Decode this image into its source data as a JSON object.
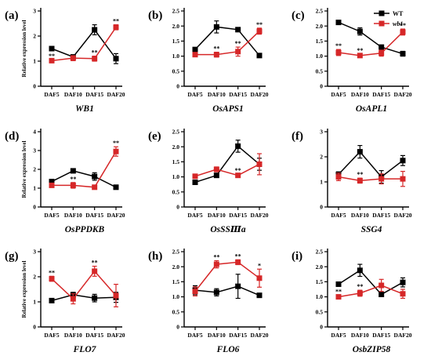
{
  "figure": {
    "legend": [
      {
        "label": "WT",
        "color": "#000000",
        "italic": false
      },
      {
        "label": "wb1",
        "color": "#d62728",
        "italic": true
      }
    ],
    "ylabel": "Relative expression level"
  },
  "chart_data": [
    {
      "type": "line",
      "panel": "(a)",
      "title": "WB1",
      "categories": [
        "DAF5",
        "DAF10",
        "DAF15",
        "DAF20"
      ],
      "ylim": [
        0,
        3
      ],
      "yticks": [
        0,
        1,
        2,
        3
      ],
      "ylabel": "Relative expression level",
      "series": [
        {
          "name": "WT",
          "color": "#000000",
          "values": [
            1.5,
            1.17,
            2.25,
            1.1
          ],
          "errors": [
            0.05,
            0.05,
            0.2,
            0.2
          ]
        },
        {
          "name": "wb1",
          "color": "#d62728",
          "values": [
            1.02,
            1.12,
            1.1,
            2.35
          ],
          "errors": [
            0.05,
            0.1,
            0.1,
            0.1
          ],
          "sig": [
            "**",
            "",
            "**",
            "**"
          ]
        }
      ]
    },
    {
      "type": "line",
      "panel": "(b)",
      "title": "OsAPS1",
      "categories": [
        "DAF5",
        "DAF10",
        "DAF15",
        "DAF20"
      ],
      "ylim": [
        0,
        2.5
      ],
      "yticks": [
        0,
        0.5,
        1.0,
        1.5,
        2.0,
        2.5
      ],
      "ylabel": "",
      "series": [
        {
          "name": "WT",
          "color": "#000000",
          "values": [
            1.22,
            1.97,
            1.88,
            1.02
          ],
          "errors": [
            0.03,
            0.2,
            0.05,
            0.03
          ]
        },
        {
          "name": "wb1",
          "color": "#d62728",
          "values": [
            1.05,
            1.05,
            1.15,
            1.83
          ],
          "errors": [
            0.03,
            0.08,
            0.15,
            0.1
          ],
          "sig": [
            "",
            "**",
            "**",
            "**"
          ]
        }
      ]
    },
    {
      "type": "line",
      "panel": "(c)",
      "title": "OsAPL1",
      "categories": [
        "DAF5",
        "DAF10",
        "DAF15",
        "DAF20"
      ],
      "ylim": [
        0,
        2.5
      ],
      "yticks": [
        0,
        0.5,
        1.0,
        1.5,
        2.0,
        2.5
      ],
      "ylabel": "",
      "series": [
        {
          "name": "WT",
          "color": "#000000",
          "values": [
            2.12,
            1.82,
            1.3,
            1.08
          ],
          "errors": [
            0.05,
            0.12,
            0.05,
            0.08
          ]
        },
        {
          "name": "wb1",
          "color": "#d62728",
          "values": [
            1.12,
            1.02,
            1.1,
            1.8
          ],
          "errors": [
            0.1,
            0.05,
            0.1,
            0.1
          ],
          "sig": [
            "**",
            "**",
            "",
            "**"
          ]
        }
      ]
    },
    {
      "type": "line",
      "panel": "(d)",
      "title": "OsPPDKB",
      "categories": [
        "DAF5",
        "DAF10",
        "DAF15",
        "DAF20"
      ],
      "ylim": [
        0,
        4
      ],
      "yticks": [
        0,
        1,
        2,
        3,
        4
      ],
      "ylabel": "Relative expression level",
      "series": [
        {
          "name": "WT",
          "color": "#000000",
          "values": [
            1.35,
            1.92,
            1.62,
            1.05
          ],
          "errors": [
            0.1,
            0.05,
            0.2,
            0.05
          ]
        },
        {
          "name": "wb1",
          "color": "#d62728",
          "values": [
            1.15,
            1.15,
            1.05,
            2.95
          ],
          "errors": [
            0.1,
            0.15,
            0.1,
            0.25
          ],
          "sig": [
            "",
            "**",
            "",
            "**"
          ]
        }
      ]
    },
    {
      "type": "line",
      "panel": "(e)",
      "title": "OsSSⅢa",
      "categories": [
        "DAF5",
        "DAF10",
        "DAF15",
        "DAF20"
      ],
      "ylim": [
        0,
        2.5
      ],
      "yticks": [
        0,
        0.5,
        1.0,
        1.5,
        2.0,
        2.5
      ],
      "ylabel": "",
      "series": [
        {
          "name": "WT",
          "color": "#000000",
          "values": [
            0.82,
            1.05,
            2.02,
            1.42
          ],
          "errors": [
            0.05,
            0.05,
            0.2,
            0.2
          ]
        },
        {
          "name": "wb1",
          "color": "#d62728",
          "values": [
            1.02,
            1.25,
            1.05,
            1.42
          ],
          "errors": [
            0.03,
            0.08,
            0.05,
            0.35
          ],
          "sig": [
            "",
            "",
            "**",
            ""
          ]
        }
      ]
    },
    {
      "type": "line",
      "panel": "(f)",
      "title": "SSG4",
      "categories": [
        "DAF5",
        "DAF10",
        "DAF15",
        "DAF20"
      ],
      "ylim": [
        0,
        3
      ],
      "yticks": [
        0,
        1,
        2,
        3
      ],
      "ylabel": "",
      "series": [
        {
          "name": "WT",
          "color": "#000000",
          "values": [
            1.3,
            2.2,
            1.2,
            1.85
          ],
          "errors": [
            0.1,
            0.25,
            0.25,
            0.2
          ]
        },
        {
          "name": "wb1",
          "color": "#d62728",
          "values": [
            1.2,
            1.05,
            1.12,
            1.12
          ],
          "errors": [
            0.15,
            0.1,
            0.2,
            0.3
          ],
          "sig": [
            "",
            "**",
            "",
            ""
          ]
        }
      ]
    },
    {
      "type": "line",
      "panel": "(g)",
      "title": "FLO7",
      "categories": [
        "DAF5",
        "DAF10",
        "DAF15",
        "DAF20"
      ],
      "ylim": [
        0,
        3
      ],
      "yticks": [
        0,
        1,
        2,
        3
      ],
      "ylabel": "Relative expression level",
      "series": [
        {
          "name": "WT",
          "color": "#000000",
          "values": [
            1.05,
            1.28,
            1.15,
            1.18
          ],
          "errors": [
            0.03,
            0.1,
            0.15,
            0.2
          ]
        },
        {
          "name": "wb1",
          "color": "#d62728",
          "values": [
            1.92,
            1.12,
            2.22,
            1.25
          ],
          "errors": [
            0.1,
            0.2,
            0.2,
            0.45
          ],
          "sig": [
            "**",
            "",
            "**",
            ""
          ]
        }
      ]
    },
    {
      "type": "line",
      "panel": "(h)",
      "title": "FLO6",
      "categories": [
        "DAF5",
        "DAF10",
        "DAF15",
        "DAF20"
      ],
      "ylim": [
        0,
        2.5
      ],
      "yticks": [
        0,
        0.5,
        1.0,
        1.5,
        2.0,
        2.5
      ],
      "ylabel": "",
      "series": [
        {
          "name": "WT",
          "color": "#000000",
          "values": [
            1.22,
            1.15,
            1.35,
            1.05
          ],
          "errors": [
            0.15,
            0.12,
            0.4,
            0.05
          ]
        },
        {
          "name": "wb1",
          "color": "#d62728",
          "values": [
            1.18,
            2.08,
            2.15,
            1.62
          ],
          "errors": [
            0.15,
            0.12,
            0.08,
            0.3
          ],
          "sig": [
            "",
            "**",
            "**",
            "*"
          ]
        }
      ]
    },
    {
      "type": "line",
      "panel": "(i)",
      "title": "OsbZIP58",
      "categories": [
        "DAF5",
        "DAF10",
        "DAF15",
        "DAF20"
      ],
      "ylim": [
        0,
        2.5
      ],
      "yticks": [
        0,
        0.5,
        1.0,
        1.5,
        2.0,
        2.5
      ],
      "ylabel": "",
      "series": [
        {
          "name": "WT",
          "color": "#000000",
          "values": [
            1.42,
            1.88,
            1.08,
            1.48
          ],
          "errors": [
            0.05,
            0.2,
            0.05,
            0.15
          ]
        },
        {
          "name": "wb1",
          "color": "#d62728",
          "values": [
            1.0,
            1.12,
            1.38,
            1.1
          ],
          "errors": [
            0.05,
            0.1,
            0.2,
            0.15
          ],
          "sig": [
            "**",
            "**",
            "",
            ""
          ]
        }
      ]
    }
  ]
}
